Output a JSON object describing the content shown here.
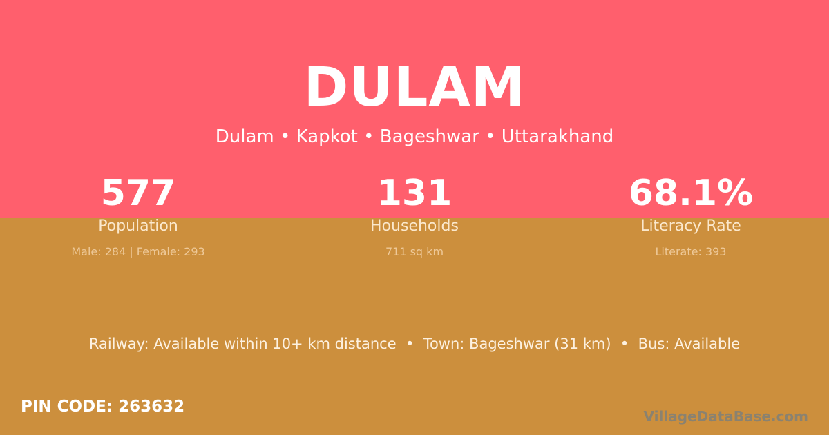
{
  "colors": {
    "top_bg": "#ff5f6d",
    "bottom_bg": "#cc8f3d"
  },
  "title": "DULAM",
  "subtitle": "Dulam • Kapkot • Bageshwar • Uttarakhand",
  "stats": [
    {
      "value": "577",
      "label": "Population",
      "detail": "Male: 284 | Female: 293"
    },
    {
      "value": "131",
      "label": "Households",
      "detail": "711 sq km"
    },
    {
      "value": "68.1%",
      "label": "Literacy Rate",
      "detail": "Literate: 393"
    }
  ],
  "facilities": "Railway: Available within 10+ km distance  •  Town: Bageshwar (31 km)  •  Bus: Available",
  "pin_code": "PIN CODE: 263632",
  "brand": "VillageDataBase.com"
}
